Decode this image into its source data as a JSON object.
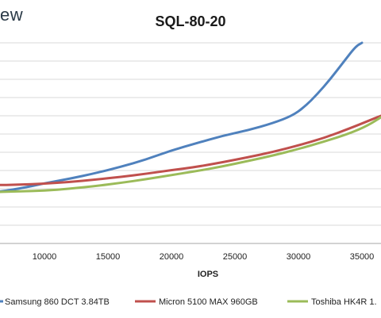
{
  "brand": "ew",
  "chart_data": {
    "type": "line",
    "title": "SQL-80-20",
    "xlabel": "IOPS",
    "ylabel": "",
    "xlim": [
      6000,
      36500
    ],
    "ylim": [
      0,
      11
    ],
    "x_ticks": [
      10000,
      15000,
      20000,
      25000,
      30000,
      35000
    ],
    "y_gridlines": [
      1,
      2,
      3,
      4,
      5,
      6,
      7,
      8,
      9,
      10,
      11
    ],
    "grid": true,
    "legend_position": "bottom",
    "series": [
      {
        "name": "Samsung 860 DCT 3.84TB",
        "color": "#4f81bd",
        "points": [
          [
            6000,
            2.8
          ],
          [
            8000,
            3.0
          ],
          [
            10000,
            3.3
          ],
          [
            12000,
            3.55
          ],
          [
            14000,
            3.85
          ],
          [
            16000,
            4.2
          ],
          [
            18000,
            4.6
          ],
          [
            20000,
            5.1
          ],
          [
            22000,
            5.5
          ],
          [
            24000,
            5.9
          ],
          [
            26000,
            6.2
          ],
          [
            28000,
            6.6
          ],
          [
            29500,
            7.0
          ],
          [
            30500,
            7.5
          ],
          [
            31500,
            8.2
          ],
          [
            32500,
            9.0
          ],
          [
            33500,
            9.9
          ],
          [
            34500,
            10.8
          ],
          [
            35000,
            11.0
          ]
        ]
      },
      {
        "name": "Micron 5100 MAX 960GB",
        "color": "#c0504d",
        "points": [
          [
            6000,
            3.2
          ],
          [
            8000,
            3.22
          ],
          [
            10000,
            3.28
          ],
          [
            12000,
            3.37
          ],
          [
            14000,
            3.5
          ],
          [
            16000,
            3.65
          ],
          [
            18000,
            3.82
          ],
          [
            20000,
            4.02
          ],
          [
            22000,
            4.2
          ],
          [
            24000,
            4.45
          ],
          [
            26000,
            4.72
          ],
          [
            28000,
            5.02
          ],
          [
            30000,
            5.38
          ],
          [
            32000,
            5.78
          ],
          [
            34000,
            6.3
          ],
          [
            35500,
            6.72
          ],
          [
            36500,
            7.0
          ]
        ]
      },
      {
        "name": "Toshiba HK4R 1.",
        "color": "#9bbb59",
        "points": [
          [
            6000,
            2.82
          ],
          [
            8000,
            2.85
          ],
          [
            10000,
            2.9
          ],
          [
            12000,
            3.0
          ],
          [
            14000,
            3.15
          ],
          [
            16000,
            3.32
          ],
          [
            18000,
            3.52
          ],
          [
            20000,
            3.75
          ],
          [
            22000,
            3.97
          ],
          [
            24000,
            4.22
          ],
          [
            26000,
            4.52
          ],
          [
            28000,
            4.82
          ],
          [
            30000,
            5.18
          ],
          [
            32000,
            5.58
          ],
          [
            34000,
            6.02
          ],
          [
            35500,
            6.48
          ],
          [
            36500,
            6.92
          ]
        ]
      }
    ]
  }
}
